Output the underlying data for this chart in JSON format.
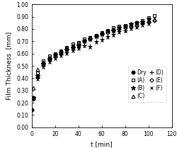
{
  "title": "",
  "xlabel": "t [min]",
  "ylabel": "Film Thickness  [mm]",
  "xlim": [
    0,
    120
  ],
  "ylim": [
    0.0,
    1.0
  ],
  "xticks": [
    0,
    20,
    40,
    60,
    80,
    100,
    120
  ],
  "yticks": [
    0.0,
    0.1,
    0.2,
    0.3,
    0.4,
    0.5,
    0.6,
    0.7,
    0.8,
    0.9,
    1.0
  ],
  "background_color": "#ffffff",
  "series": {
    "Dry": {
      "x": [
        0
      ],
      "y": [
        0.14
      ],
      "marker": "o",
      "fillstyle": "full",
      "markersize": 3.5
    },
    "(A)": {
      "x": [
        1,
        5,
        10,
        15,
        20,
        25,
        30,
        35,
        40,
        45,
        50,
        55,
        60,
        65,
        70,
        75,
        80,
        85,
        90,
        95,
        100,
        105
      ],
      "y": [
        0.24,
        0.44,
        0.54,
        0.58,
        0.6,
        0.62,
        0.65,
        0.68,
        0.69,
        0.72,
        0.73,
        0.75,
        0.77,
        0.79,
        0.81,
        0.82,
        0.83,
        0.84,
        0.85,
        0.87,
        0.89,
        0.91
      ],
      "marker": "s",
      "fillstyle": "none",
      "markersize": 3.5
    },
    "(B)": {
      "x": [
        1,
        5,
        10,
        15,
        20,
        25,
        30,
        35,
        40,
        45,
        50,
        55,
        60,
        65,
        70,
        75,
        80,
        85,
        90,
        95,
        100
      ],
      "y": [
        0.24,
        0.42,
        0.52,
        0.56,
        0.59,
        0.61,
        0.63,
        0.65,
        0.67,
        0.7,
        0.72,
        0.74,
        0.76,
        0.78,
        0.79,
        0.81,
        0.82,
        0.84,
        0.85,
        0.86,
        0.88
      ],
      "marker": "*",
      "fillstyle": "full",
      "markersize": 4.5
    },
    "(C)": {
      "x": [
        1,
        5,
        10,
        15,
        20,
        25,
        30,
        35,
        40,
        45,
        50,
        55,
        60,
        65,
        70,
        75,
        80,
        85,
        90,
        95,
        100,
        105
      ],
      "y": [
        0.32,
        0.47,
        0.53,
        0.57,
        0.6,
        0.62,
        0.65,
        0.67,
        0.69,
        0.71,
        0.73,
        0.75,
        0.77,
        0.79,
        0.8,
        0.81,
        0.82,
        0.84,
        0.85,
        0.86,
        0.87,
        0.88
      ],
      "marker": "^",
      "fillstyle": "none",
      "markersize": 3.5
    },
    "(D)": {
      "x": [
        1,
        5,
        10,
        15,
        20,
        25,
        30,
        35,
        40,
        45,
        50,
        55,
        60,
        65,
        70,
        75,
        80,
        85,
        90,
        95,
        100
      ],
      "y": [
        0.23,
        0.4,
        0.5,
        0.54,
        0.57,
        0.59,
        0.61,
        0.63,
        0.65,
        0.67,
        0.66,
        0.7,
        0.72,
        0.74,
        0.76,
        0.78,
        0.79,
        0.81,
        0.82,
        0.84,
        0.85
      ],
      "marker": "+",
      "fillstyle": "full",
      "markersize": 4.5
    },
    "(E)": {
      "x": [
        1,
        5,
        10,
        15,
        20,
        25,
        30,
        35,
        40,
        45,
        50,
        55,
        60,
        65,
        70,
        75,
        80,
        85,
        90,
        95,
        100,
        105
      ],
      "y": [
        0.24,
        0.41,
        0.51,
        0.55,
        0.58,
        0.6,
        0.63,
        0.65,
        0.67,
        0.7,
        0.72,
        0.74,
        0.76,
        0.77,
        0.79,
        0.8,
        0.81,
        0.82,
        0.83,
        0.85,
        0.86,
        0.87
      ],
      "marker": "D",
      "fillstyle": "none",
      "markersize": 2.8
    },
    "(F)": {
      "x": [
        1,
        5,
        10,
        15,
        20,
        25,
        30,
        35,
        40,
        45,
        50,
        55,
        60,
        65,
        70,
        75,
        80,
        85,
        90,
        95,
        100
      ],
      "y": [
        0.23,
        0.39,
        0.49,
        0.53,
        0.56,
        0.58,
        0.6,
        0.62,
        0.64,
        0.66,
        0.65,
        0.69,
        0.71,
        0.73,
        0.75,
        0.77,
        0.78,
        0.8,
        0.81,
        0.83,
        0.84
      ],
      "marker": "x",
      "fillstyle": "full",
      "markersize": 3.5
    }
  },
  "legend_order": [
    "Dry",
    "(A)",
    "(B)",
    "(C)",
    "(D)",
    "(E)",
    "(F)"
  ],
  "legend_fontsize": 5.5,
  "axis_fontsize": 6.5,
  "tick_fontsize": 5.5
}
